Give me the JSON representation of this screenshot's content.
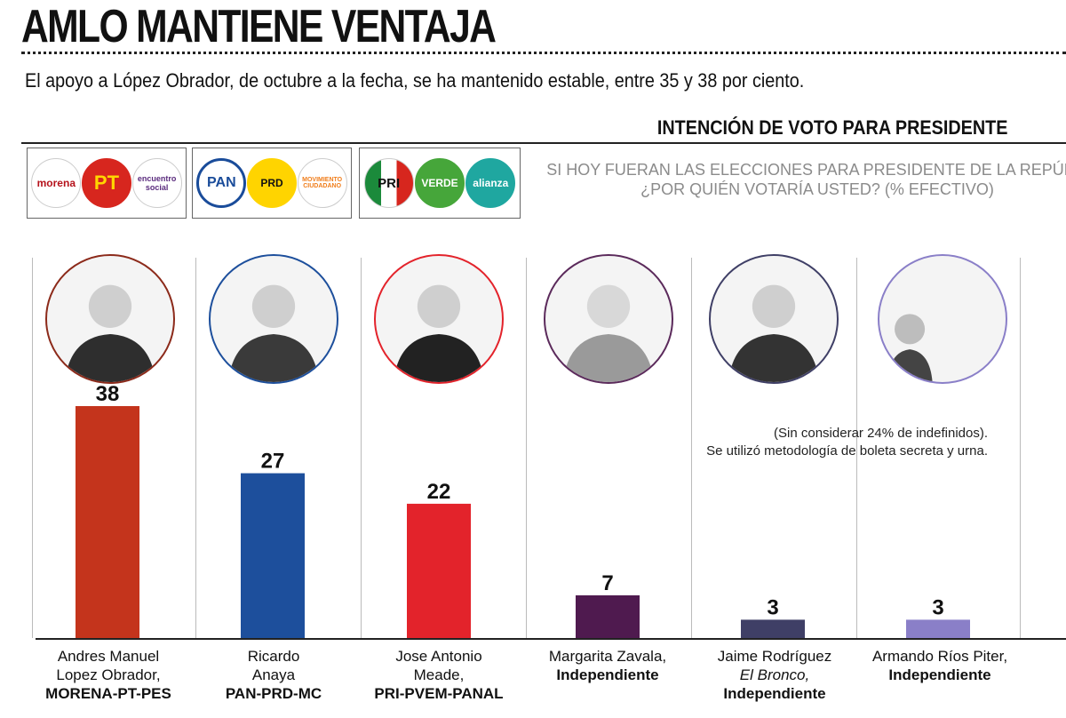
{
  "headline": "AMLO MANTIENE VENTAJA",
  "subheadline": "El apoyo a López Obrador, de octubre a la fecha, se ha mantenido estable, entre 35 y 38 por ciento.",
  "section_title": "INTENCIÓN DE VOTO PARA PRESIDENTE",
  "question": {
    "line1": "SI HOY FUERAN LAS ELECCIONES PARA PRESIDENTE DE LA REPÚBLI",
    "line2": "¿POR QUIÉN VOTARÍA USTED? (% EFECTIVO)"
  },
  "note": {
    "line1": "(Sin considerar 24% de indefinidos).",
    "line2": "Se utilizó metodología de boleta secreta y urna."
  },
  "party_logos": [
    [
      "morena",
      "PT",
      "encuentro social"
    ],
    [
      "PAN",
      "PRD",
      "MOVIMIENTO CIUDADANO"
    ],
    [
      "PRI",
      "VERDE",
      "alianza"
    ]
  ],
  "colors": {
    "amlo": "#c4341c",
    "anaya": "#1d4f9c",
    "meade": "#e3232b",
    "zavala": "#4f1a4f",
    "bronco": "#3f3f66",
    "rios": "#8a7fc8"
  },
  "candidates": [
    {
      "name_line1": "Andres Manuel",
      "name_line2": "Lopez Obrador,",
      "party": "MORENA-PT-PES"
    },
    {
      "name_line1": "Ricardo",
      "name_line2": "Anaya",
      "party": "PAN-PRD-MC"
    },
    {
      "name_line1": "Jose Antonio",
      "name_line2": "Meade,",
      "party": "PRI-PVEM-PANAL"
    },
    {
      "name_line1": "Margarita Zavala,",
      "name_line2": "",
      "party": "Independiente"
    },
    {
      "name_line1": "Jaime Rodríguez",
      "name_line2": "El Bronco,",
      "party": "Independiente"
    },
    {
      "name_line1": "Armando Ríos Piter,",
      "name_line2": "",
      "party": "Independiente"
    }
  ],
  "chart_data": {
    "type": "bar",
    "title": "INTENCIÓN DE VOTO PARA PRESIDENTE",
    "categories": [
      "Andres Manuel Lopez Obrador",
      "Ricardo Anaya",
      "Jose Antonio Meade",
      "Margarita Zavala",
      "Jaime Rodríguez",
      "Armando Ríos Piter"
    ],
    "values": [
      38,
      27,
      22,
      7,
      3,
      3
    ],
    "ylabel": "% efectivo",
    "ylim": [
      0,
      38
    ]
  }
}
